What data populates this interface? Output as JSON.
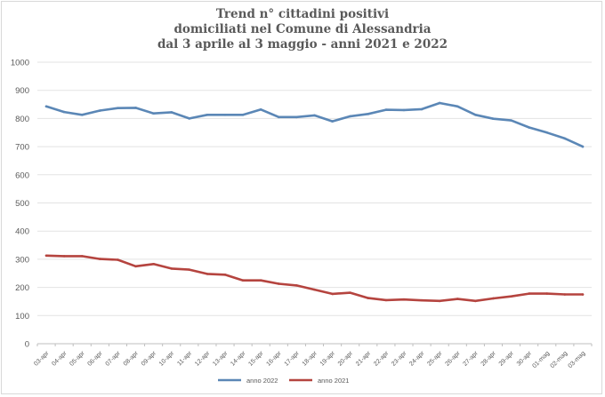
{
  "chart_data": {
    "type": "line",
    "title_lines": [
      "Trend n° cittadini positivi",
      "domiciliati nel Comune di Alessandria",
      "dal 3 aprile al 3 maggio - anni 2021 e 2022"
    ],
    "xlabel": "",
    "ylabel": "",
    "ylim": [
      0,
      1000
    ],
    "yticks": [
      0,
      100,
      200,
      300,
      400,
      500,
      600,
      700,
      800,
      900,
      1000
    ],
    "grid": true,
    "legend_position": "bottom",
    "categories": [
      "03-apr",
      "04-apr",
      "05-apr",
      "06-apr",
      "07-apr",
      "08-apr",
      "09-apr",
      "10-apr",
      "11-apr",
      "12-apr",
      "13-apr",
      "14-apr",
      "15-apr",
      "16-apr",
      "17-apr",
      "18-apr",
      "19-apr",
      "20-apr",
      "21-apr",
      "22-apr",
      "23-apr",
      "24-apr",
      "25-apr",
      "26-apr",
      "27-apr",
      "28-apr",
      "29-apr",
      "30-apr",
      "01-mag",
      "02-mag",
      "03-mag"
    ],
    "series": [
      {
        "name": "anno 2022",
        "color": "#5b87b6",
        "values": [
          843,
          823,
          813,
          828,
          837,
          838,
          818,
          822,
          800,
          813,
          813,
          813,
          832,
          805,
          805,
          811,
          790,
          808,
          816,
          831,
          830,
          833,
          855,
          843,
          813,
          799,
          793,
          768,
          750,
          729,
          700
        ]
      },
      {
        "name": "anno 2021",
        "color": "#b5443f",
        "values": [
          313,
          311,
          311,
          301,
          298,
          275,
          283,
          267,
          263,
          248,
          245,
          225,
          225,
          213,
          207,
          192,
          177,
          181,
          162,
          155,
          157,
          154,
          152,
          159,
          152,
          161,
          168,
          178,
          178,
          175,
          175
        ]
      }
    ]
  }
}
